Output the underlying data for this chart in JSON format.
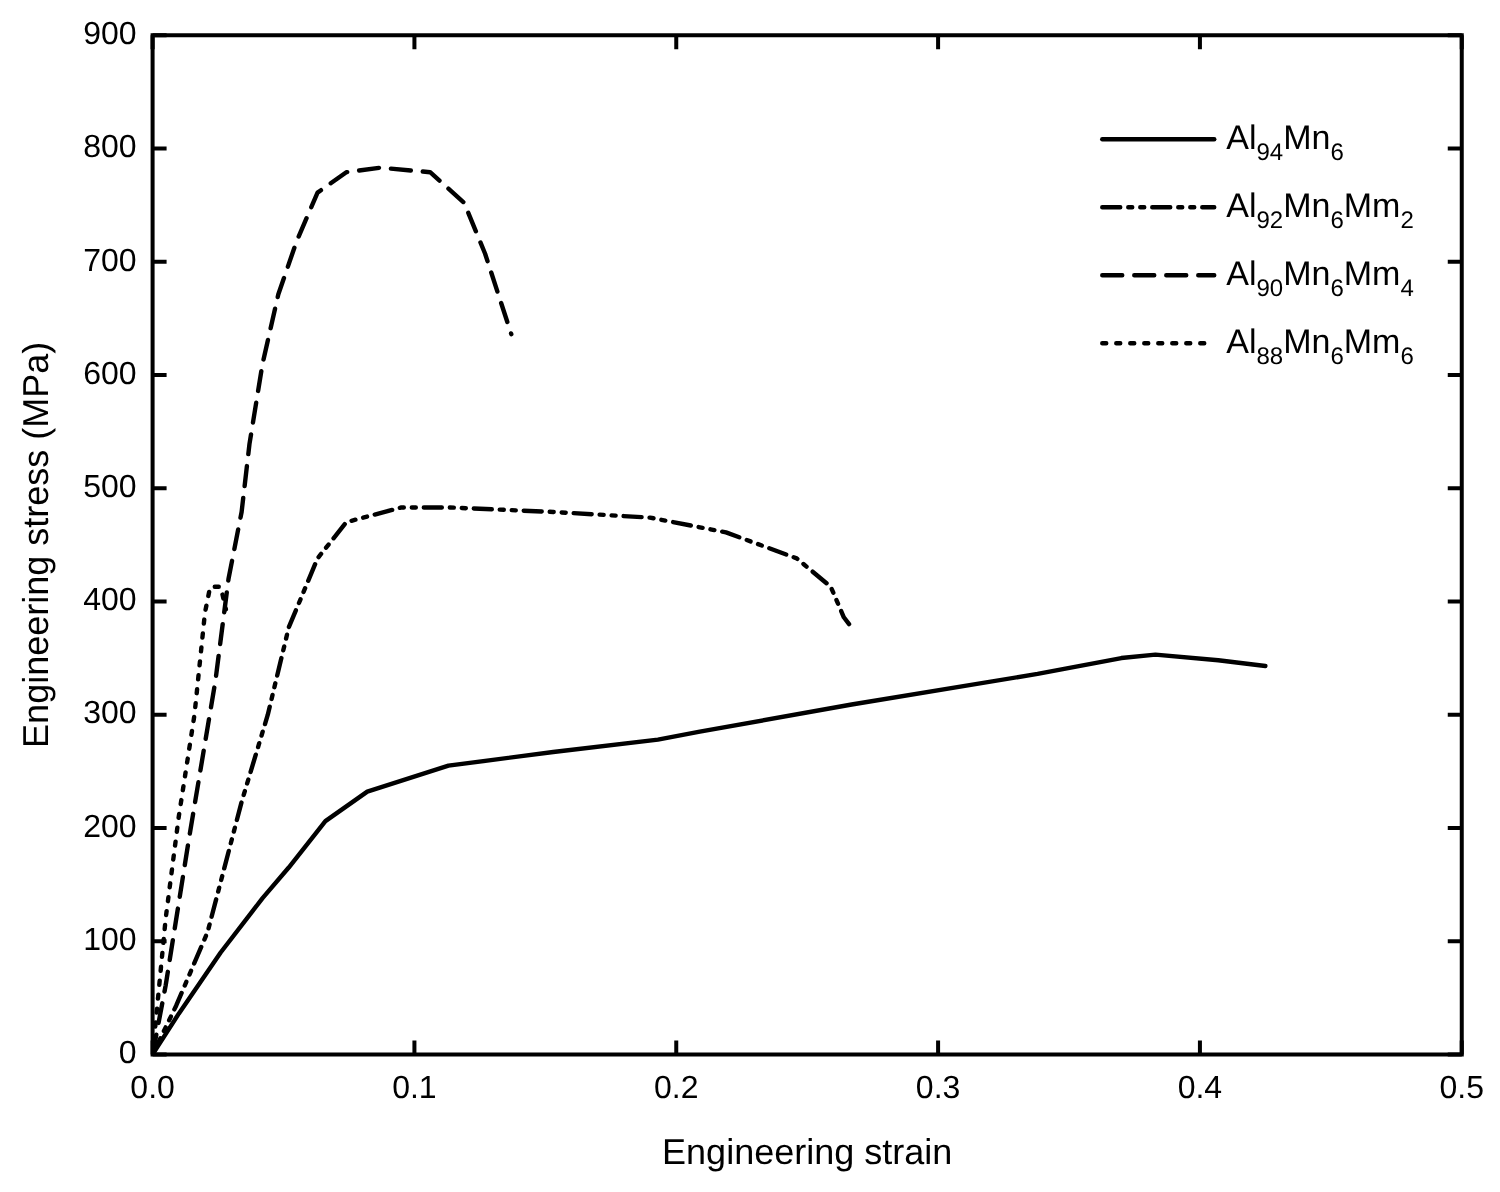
{
  "chart_data": {
    "type": "line",
    "xlabel": "Engineering strain",
    "ylabel": "Engineering stress (MPa)",
    "xlim": [
      0,
      0.5
    ],
    "xticks": [
      {
        "value": 0,
        "label": "0.0"
      },
      0.1,
      0.2,
      0.3,
      0.4,
      0.5
    ],
    "ylim": [
      0,
      900
    ],
    "yticks": [
      0,
      100,
      200,
      300,
      400,
      500,
      600,
      700,
      800,
      900
    ],
    "grid": false,
    "legend": "top right",
    "marker": "none",
    "series": [
      {
        "name": "Al$_{94}$Mn$_{6}$",
        "color": "#000000",
        "line_style": "solid",
        "x": [
          0,
          0.01,
          0.026,
          0.042,
          0.052,
          0.066,
          0.082,
          0.113,
          0.153,
          0.193,
          0.209,
          0.267,
          0.338,
          0.37,
          0.383,
          0.407,
          0.425
        ],
        "values": [
          0,
          36,
          90,
          138,
          165,
          206,
          232,
          255,
          267,
          278,
          285,
          309,
          336,
          350,
          353,
          348,
          343
        ]
      },
      {
        "name": "Al$_{92}$Mn$_{6}$Mm$_{2}$",
        "color": "#000000",
        "line_style": "dashdot",
        "x": [
          0,
          0.009,
          0.021,
          0.034,
          0.044,
          0.052,
          0.063,
          0.074,
          0.095,
          0.113,
          0.153,
          0.19,
          0.219,
          0.246,
          0.259,
          0.264,
          0.266
        ],
        "values": [
          0,
          43,
          108,
          223,
          300,
          377,
          438,
          470,
          483,
          483,
          479,
          474,
          461,
          438,
          413,
          386,
          380
        ]
      },
      {
        "name": "Al$_{90}$Mn$_{6}$Mm$_{4}$",
        "color": "#000000",
        "line_style": "dashed",
        "x": [
          0,
          0.005,
          0.014,
          0.024,
          0.029,
          0.034,
          0.037,
          0.042,
          0.048,
          0.055,
          0.063,
          0.074,
          0.087,
          0.106,
          0.119,
          0.127,
          0.137
        ],
        "values": [
          0,
          61,
          192,
          330,
          420,
          479,
          539,
          610,
          671,
          718,
          761,
          779,
          783,
          779,
          752,
          707,
          636
        ]
      },
      {
        "name": "Al$_{88}$Mn$_{6}$Mm$_{6}$",
        "color": "#000000",
        "line_style": "dotted",
        "x": [
          0,
          0.005,
          0.01,
          0.016,
          0.02,
          0.022,
          0.026,
          0.028
        ],
        "values": [
          0,
          120,
          210,
          300,
          390,
          413,
          413,
          393
        ]
      }
    ]
  }
}
